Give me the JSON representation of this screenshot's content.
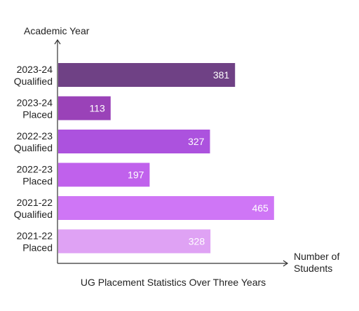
{
  "chart_data": {
    "type": "bar",
    "orientation": "horizontal",
    "title": "UG Placement Statistics Over Three Years",
    "ylabel": "Academic Year",
    "xlabel_lines": [
      "Number of",
      "Students"
    ],
    "categories": [
      [
        "2023-24",
        "Qualified"
      ],
      [
        "2023-24",
        "Placed"
      ],
      [
        "2022-23",
        "Qualified"
      ],
      [
        "2022-23",
        "Placed"
      ],
      [
        "2021-22",
        "Qualified"
      ],
      [
        "2021-22",
        "Placed"
      ]
    ],
    "values": [
      381,
      113,
      327,
      197,
      465,
      328
    ],
    "colors": [
      "#6f4185",
      "#9a42b8",
      "#ac52de",
      "#c061ec",
      "#cf76f6",
      "#dfa2f4"
    ],
    "xlim": [
      0,
      500
    ],
    "data_labels": true,
    "data_label_color": "#ffffff",
    "grid": false,
    "legend": "none"
  }
}
